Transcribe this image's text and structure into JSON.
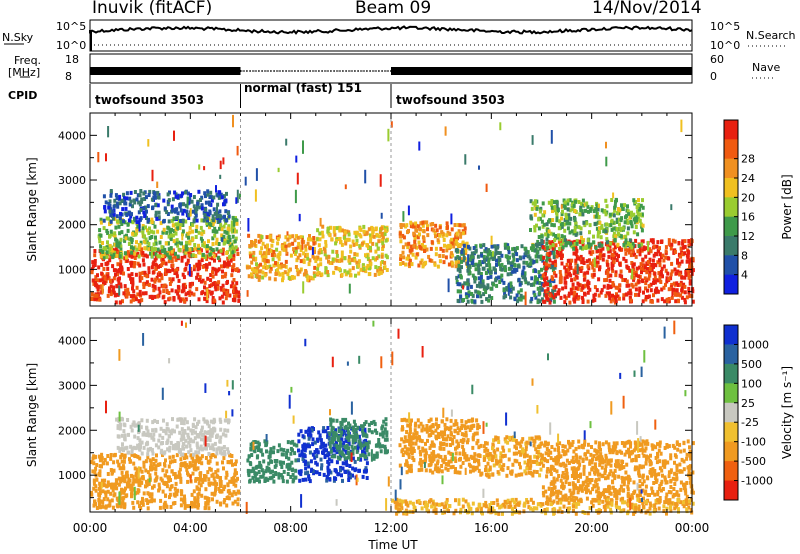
{
  "header": {
    "station": "Inuvik (fitACF)",
    "beam": "Beam 09",
    "date": "14/Nov/2014"
  },
  "status_panels": {
    "nsky_label": "N.Sky",
    "nsky_ticks": [
      "10^5",
      "10^0"
    ],
    "nsearch_label": "N.Search",
    "nsearch_ticks": [
      "10^5",
      "10^0"
    ],
    "freq_label": "Freq.",
    "freq_unit": "[MHz]",
    "freq_ticks": [
      "18",
      "8"
    ],
    "nave_label": "Nave",
    "nave_ticks": [
      "60",
      "0"
    ],
    "cpid_label": "CPID",
    "cpid_modes": [
      {
        "name": "twofsound 3503",
        "start_hour": 0,
        "end_hour": 6
      },
      {
        "name": "normal (fast) 151",
        "start_hour": 6,
        "end_hour": 12
      },
      {
        "name": "twofsound 3503",
        "start_hour": 12,
        "end_hour": 24
      }
    ]
  },
  "chart_data": [
    {
      "type": "heatmap",
      "name": "power",
      "ylabel": "Slant Range [km]",
      "yticks": [
        1000,
        2000,
        3000,
        4000
      ],
      "ylim": [
        180,
        4500
      ],
      "xlim": [
        0,
        24
      ],
      "colorbar_label": "Power [dB]",
      "colorbar_ticks": [
        "4",
        "8",
        "12",
        "16",
        "20",
        "24",
        "28"
      ],
      "colorbar_colors": [
        "#1020e0",
        "#2050a8",
        "#3a7a6a",
        "#3f9a4a",
        "#9acc30",
        "#f0c020",
        "#f09020",
        "#f05a10",
        "#e82010"
      ],
      "echo_regions": [
        {
          "t0": 0.0,
          "t1": 5.9,
          "r0": 300,
          "r1": 1500,
          "value": 27
        },
        {
          "t0": 0.3,
          "t1": 5.8,
          "r0": 1300,
          "r1": 2200,
          "value": 14
        },
        {
          "t0": 0.5,
          "t1": 5.5,
          "r0": 2100,
          "r1": 2800,
          "value": 6
        },
        {
          "t0": 6.2,
          "t1": 9.0,
          "r0": 800,
          "r1": 1800,
          "value": 20
        },
        {
          "t0": 9.0,
          "t1": 11.8,
          "r0": 900,
          "r1": 2000,
          "value": 18
        },
        {
          "t0": 12.3,
          "t1": 15.0,
          "r0": 1100,
          "r1": 2100,
          "value": 21
        },
        {
          "t0": 14.5,
          "t1": 18.5,
          "r0": 300,
          "r1": 1600,
          "value": 9
        },
        {
          "t0": 18.0,
          "t1": 24.0,
          "r0": 300,
          "r1": 1700,
          "value": 27
        },
        {
          "t0": 17.5,
          "t1": 22.0,
          "r0": 1500,
          "r1": 2600,
          "value": 13
        }
      ]
    },
    {
      "type": "heatmap",
      "name": "velocity",
      "xlabel": "Time UT",
      "ylabel": "Slant Range [km]",
      "yticks": [
        1000,
        2000,
        3000,
        4000
      ],
      "ylim": [
        180,
        4500
      ],
      "xlim": [
        0,
        24
      ],
      "xticks": [
        "00:00",
        "04:00",
        "08:00",
        "12:00",
        "16:00",
        "20:00",
        "00:00"
      ],
      "colorbar_label": "Velocity [m s⁻¹]",
      "colorbar_ticks": [
        "1000",
        "500",
        "100",
        "25",
        "-25",
        "-100",
        "-500",
        "-1000"
      ],
      "colorbar_colors": [
        "#1030d0",
        "#2a62a0",
        "#3a8a66",
        "#6ec040",
        "#c8c8c0",
        "#f0c030",
        "#f09a20",
        "#f06010",
        "#e82010"
      ],
      "echo_regions": [
        {
          "t0": 0.0,
          "t1": 5.9,
          "r0": 300,
          "r1": 1500,
          "value": -120
        },
        {
          "t0": 1.0,
          "t1": 5.5,
          "r0": 1500,
          "r1": 2300,
          "value": 0
        },
        {
          "t0": 6.2,
          "t1": 8.2,
          "r0": 900,
          "r1": 1800,
          "value": 200
        },
        {
          "t0": 8.2,
          "t1": 11.0,
          "r0": 900,
          "r1": 2100,
          "value": 900
        },
        {
          "t0": 9.5,
          "t1": 11.8,
          "r0": 1400,
          "r1": 2300,
          "value": 150
        },
        {
          "t0": 12.3,
          "t1": 15.5,
          "r0": 1100,
          "r1": 2300,
          "value": -150
        },
        {
          "t0": 15.5,
          "t1": 18.0,
          "r0": 1000,
          "r1": 1900,
          "value": -80
        },
        {
          "t0": 18.0,
          "t1": 24.0,
          "r0": 400,
          "r1": 1800,
          "value": -200
        },
        {
          "t0": 12.0,
          "t1": 24.0,
          "r0": 180,
          "r1": 500,
          "value": -60
        }
      ]
    }
  ]
}
